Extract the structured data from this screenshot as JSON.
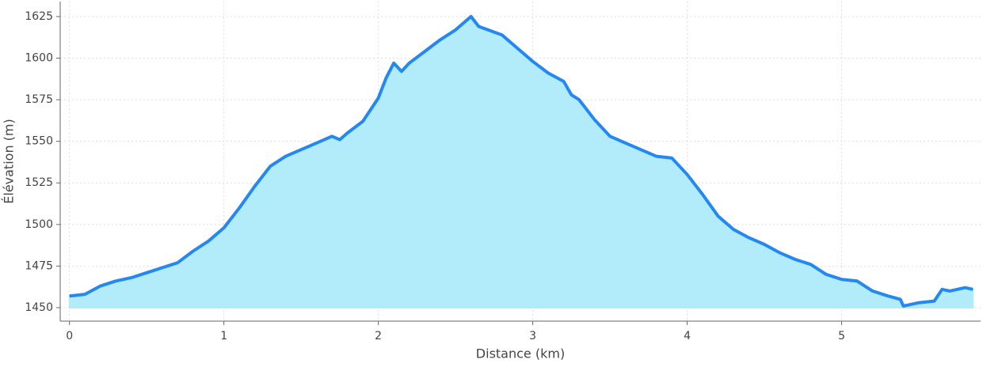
{
  "chart_data": {
    "type": "area",
    "xlabel": "Distance (km)",
    "ylabel": "Élévation (m)",
    "x": [
      0,
      0.1,
      0.2,
      0.3,
      0.4,
      0.5,
      0.6,
      0.7,
      0.8,
      0.9,
      1.0,
      1.1,
      1.2,
      1.3,
      1.4,
      1.5,
      1.6,
      1.7,
      1.75,
      1.8,
      1.9,
      2.0,
      2.05,
      2.1,
      2.15,
      2.2,
      2.3,
      2.4,
      2.5,
      2.6,
      2.65,
      2.8,
      2.9,
      3.0,
      3.1,
      3.2,
      3.25,
      3.3,
      3.4,
      3.5,
      3.6,
      3.7,
      3.8,
      3.9,
      4.0,
      4.1,
      4.2,
      4.3,
      4.4,
      4.5,
      4.6,
      4.7,
      4.8,
      4.9,
      5.0,
      5.1,
      5.2,
      5.3,
      5.38,
      5.4,
      5.5,
      5.6,
      5.65,
      5.7,
      5.8,
      5.85
    ],
    "series": [
      {
        "color": "#2388f2",
        "fill": "#b2ecfb",
        "values": [
          1457,
          1458,
          1463,
          1466,
          1468,
          1471,
          1474,
          1477,
          1484,
          1490,
          1498,
          1510,
          1523,
          1535,
          1541,
          1545,
          1549,
          1553,
          1551,
          1555,
          1562,
          1576,
          1588,
          1597,
          1592,
          1597,
          1604,
          1611,
          1617,
          1625,
          1619,
          1614,
          1606,
          1598,
          1591,
          1586,
          1578,
          1575,
          1563,
          1553,
          1549,
          1545,
          1541,
          1540,
          1530,
          1518,
          1505,
          1497,
          1492,
          1488,
          1483,
          1479,
          1476,
          1470,
          1467,
          1466,
          1460,
          1457,
          1455,
          1451,
          1453,
          1454,
          1461,
          1460,
          1462,
          1461
        ]
      }
    ],
    "fill_to": 1450,
    "xlim": [
      -0.06,
      5.9
    ],
    "xticks": [
      0,
      1,
      2,
      3,
      4,
      5
    ],
    "ylim": [
      1441.9,
      1634
    ],
    "yticks": [
      1450,
      1475,
      1500,
      1525,
      1550,
      1575,
      1600,
      1625
    ],
    "grid": true
  }
}
